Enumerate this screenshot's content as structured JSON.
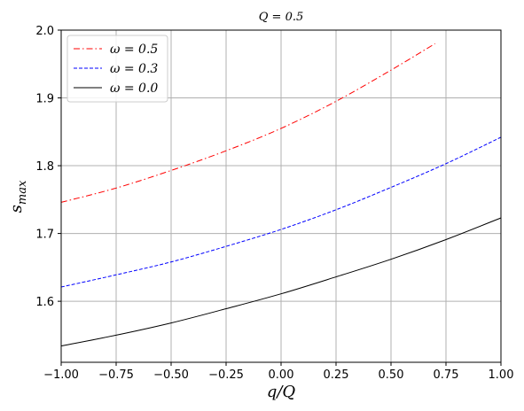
{
  "chart_data": {
    "type": "line",
    "title": "Q = 0.5",
    "xlabel": "q/Q",
    "ylabel": "s_max",
    "xlim": [
      -1.0,
      1.0
    ],
    "ylim": [
      1.51,
      2.0
    ],
    "xticks": [
      -1.0,
      -0.75,
      -0.5,
      -0.25,
      0.0,
      0.25,
      0.5,
      0.75,
      1.0
    ],
    "xtick_labels": [
      "−1.00",
      "−0.75",
      "−0.50",
      "−0.25",
      "0.00",
      "0.25",
      "0.50",
      "0.75",
      "1.00"
    ],
    "yticks": [
      1.6,
      1.7,
      1.8,
      1.9,
      2.0
    ],
    "ytick_labels": [
      "1.6",
      "1.7",
      "1.8",
      "1.9",
      "2.0"
    ],
    "grid": true,
    "legend_position": "top-left",
    "series": [
      {
        "name": "ω = 0.5",
        "color": "#ff0000",
        "dash": "dashdot",
        "x": [
          -1.0,
          -0.75,
          -0.5,
          -0.25,
          0.0,
          0.25,
          0.5,
          0.7
        ],
        "y": [
          1.746,
          1.767,
          1.793,
          1.822,
          1.855,
          1.895,
          1.941,
          1.98
        ]
      },
      {
        "name": "ω = 0.3",
        "color": "#0000ff",
        "dash": "dashed",
        "x": [
          -1.0,
          -0.75,
          -0.5,
          -0.25,
          0.0,
          0.25,
          0.5,
          0.75,
          1.0
        ],
        "y": [
          1.621,
          1.639,
          1.658,
          1.681,
          1.706,
          1.735,
          1.768,
          1.803,
          1.842
        ]
      },
      {
        "name": "ω = 0.0",
        "color": "#000000",
        "dash": "solid",
        "x": [
          -1.0,
          -0.75,
          -0.5,
          -0.25,
          0.0,
          0.25,
          0.5,
          0.75,
          1.0
        ],
        "y": [
          1.534,
          1.55,
          1.568,
          1.589,
          1.611,
          1.636,
          1.662,
          1.691,
          1.723
        ]
      }
    ]
  }
}
